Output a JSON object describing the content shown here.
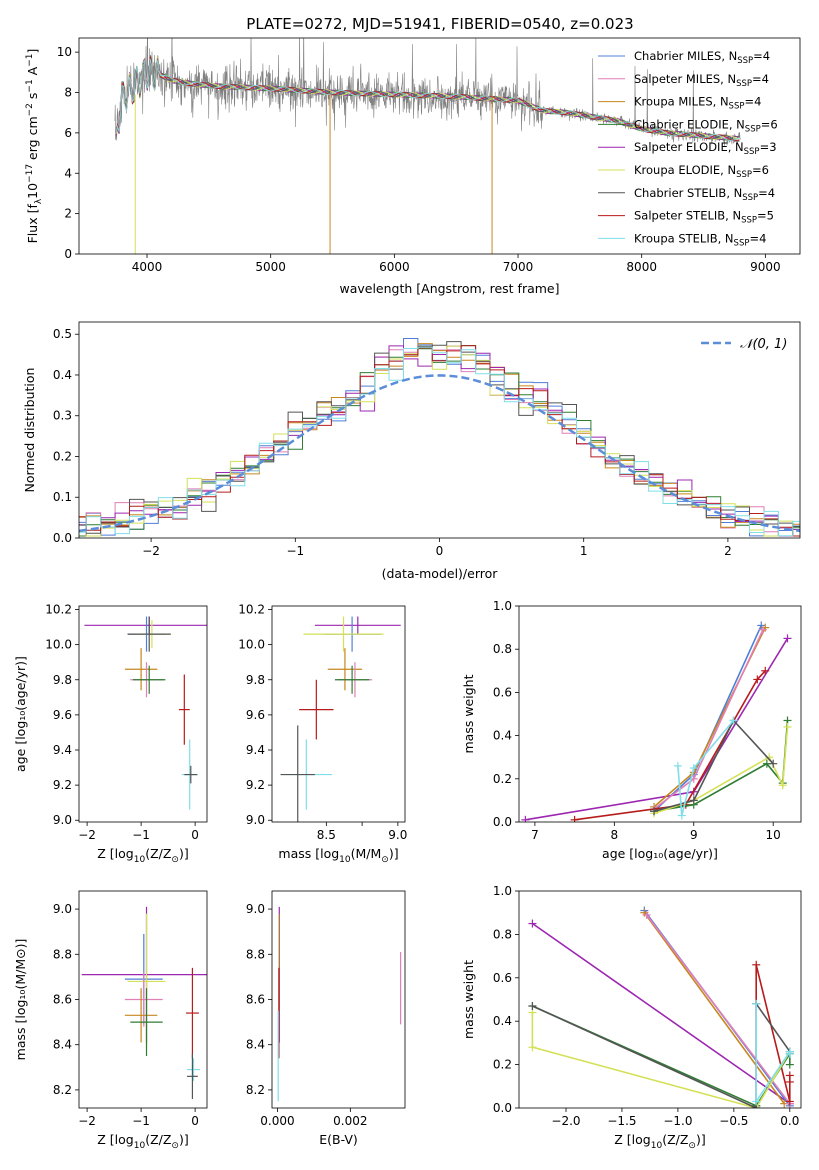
{
  "figure": {
    "title": "PLATE=0272, MJD=51941, FIBERID=0540, z=0.023"
  },
  "series_styles": [
    {
      "name": "Chabrier MILES",
      "n_ssp": "4",
      "color": "#4f7fd6"
    },
    {
      "name": "Salpeter MILES",
      "n_ssp": "4",
      "color": "#e07fb8"
    },
    {
      "name": "Kroupa MILES",
      "n_ssp": "4",
      "color": "#c8861e"
    },
    {
      "name": "Chabrier ELODIE",
      "n_ssp": "6",
      "color": "#2e7d32"
    },
    {
      "name": "Salpeter ELODIE",
      "n_ssp": "3",
      "color": "#9c27b0"
    },
    {
      "name": "Kroupa ELODIE",
      "n_ssp": "6",
      "color": "#d4e157"
    },
    {
      "name": "Chabrier STELIB",
      "n_ssp": "4",
      "color": "#555555"
    },
    {
      "name": "Salpeter STELIB",
      "n_ssp": "5",
      "color": "#b71c1c"
    },
    {
      "name": "Kroupa STELIB",
      "n_ssp": "4",
      "color": "#80deea"
    }
  ],
  "chart_data": [
    {
      "id": "spectrum",
      "type": "line",
      "xlabel": "wavelength [Angstrom, rest frame]",
      "ylabel_parts": [
        "Flux [f",
        "λ",
        "10",
        "−17",
        " erg cm",
        "−2",
        " s",
        "−1",
        " A",
        "−1",
        "]"
      ],
      "xlim": [
        3450,
        9280
      ],
      "ylim": [
        0,
        10.7
      ],
      "xticks": [
        4000,
        5000,
        6000,
        7000,
        8000,
        9000
      ],
      "yticks": [
        0,
        2,
        4,
        6,
        8,
        10
      ],
      "legend": "upper-right",
      "data_color": "#808080",
      "continuum": {
        "x": [
          3750,
          3800,
          3900,
          4000,
          4100,
          4200,
          4400,
          4600,
          5000,
          5500,
          6000,
          6500,
          7000,
          7200,
          7400,
          7600,
          7800,
          8000,
          8200,
          8400,
          8600,
          8800
        ],
        "y": [
          6.0,
          7.8,
          8.3,
          9.0,
          8.9,
          8.6,
          8.4,
          8.3,
          8.2,
          8.0,
          7.9,
          7.8,
          7.6,
          7.1,
          7.0,
          6.8,
          6.6,
          6.2,
          6.0,
          5.9,
          5.8,
          5.7
        ]
      },
      "data_end_x": 8800
    },
    {
      "id": "residuals",
      "type": "histogram",
      "xlabel": "(data-model)/error",
      "ylabel": "Normed distribution",
      "xlim": [
        -2.5,
        2.5
      ],
      "ylim": [
        0,
        0.53
      ],
      "xticks": [
        -2,
        -1,
        0,
        1,
        2
      ],
      "yticks": [
        0.0,
        0.1,
        0.2,
        0.3,
        0.4,
        0.5
      ],
      "legend_label": "𝒩(0, 1)",
      "bin_width": 0.1,
      "gaussian_color": "#5b8dd9"
    },
    {
      "id": "age-vs-Z",
      "type": "errorbar",
      "xlabel_main": "Z [log",
      "xlabel_sub": "10",
      "xlabel_tail": "(Z/Z",
      "xlabel_sym": "⊙",
      "xlabel_end": ")]",
      "ylabel": "age  [log₁₀(age/yr)]",
      "xlim": [
        -2.15,
        0.22
      ],
      "ylim": [
        8.99,
        10.22
      ],
      "xticks": [
        -2,
        -1,
        0
      ],
      "yticks": [
        9.0,
        9.2,
        9.4,
        9.6,
        9.8,
        10.0,
        10.2
      ],
      "points": [
        {
          "s": 4,
          "x": -0.85,
          "xe": 1.2,
          "y": 10.11,
          "ye": 0.05
        },
        {
          "s": 0,
          "x": -0.9,
          "xe": 0.35,
          "y": 10.06,
          "ye": 0.1
        },
        {
          "s": 5,
          "x": -0.8,
          "xe": 0.35,
          "y": 10.06,
          "ye": 0.08
        },
        {
          "s": 6,
          "x": -0.85,
          "xe": 0.4,
          "y": 10.06,
          "ye": 0.1
        },
        {
          "s": 2,
          "x": -1.0,
          "xe": 0.3,
          "y": 9.86,
          "ye": 0.12
        },
        {
          "s": 1,
          "x": -0.9,
          "xe": 0.3,
          "y": 9.8,
          "ye": 0.1
        },
        {
          "s": 3,
          "x": -0.85,
          "xe": 0.3,
          "y": 9.8,
          "ye": 0.08
        },
        {
          "s": 7,
          "x": -0.2,
          "xe": 0.1,
          "y": 9.63,
          "ye": 0.2
        },
        {
          "s": 8,
          "x": -0.1,
          "xe": 0.15,
          "y": 9.26,
          "ye": 0.2
        },
        {
          "s": 6,
          "x": -0.08,
          "xe": 0.12,
          "y": 9.26,
          "ye": 0.05
        }
      ]
    },
    {
      "id": "age-vs-mass",
      "type": "errorbar",
      "xlabel_main": "mass [log",
      "xlabel_sub": "10",
      "xlabel_tail": "(M/M",
      "xlabel_sym": "⊙",
      "xlabel_end": ")]",
      "ylabel": "",
      "xlim": [
        8.12,
        9.05
      ],
      "ylim": [
        8.99,
        10.22
      ],
      "xticks": [
        8.5,
        8.75,
        9.0
      ],
      "xticklabels": [
        "8.5",
        "",
        "9.0"
      ],
      "yticks": [
        9.0,
        9.2,
        9.4,
        9.6,
        9.8,
        10.0,
        10.2
      ],
      "points": [
        {
          "s": 4,
          "x": 8.72,
          "xe": 0.3,
          "y": 10.11,
          "ye": 0.05
        },
        {
          "s": 0,
          "x": 8.68,
          "xe": 0.2,
          "y": 10.06,
          "ye": 0.1
        },
        {
          "s": 5,
          "x": 8.62,
          "xe": 0.28,
          "y": 10.06,
          "ye": 0.1
        },
        {
          "s": 2,
          "x": 8.63,
          "xe": 0.12,
          "y": 9.86,
          "ye": 0.12
        },
        {
          "s": 1,
          "x": 8.7,
          "xe": 0.12,
          "y": 9.8,
          "ye": 0.1
        },
        {
          "s": 3,
          "x": 8.68,
          "xe": 0.12,
          "y": 9.8,
          "ye": 0.08
        },
        {
          "s": 7,
          "x": 8.43,
          "xe": 0.12,
          "y": 9.63,
          "ye": 0.17
        },
        {
          "s": 8,
          "x": 8.36,
          "xe": 0.18,
          "y": 9.26,
          "ye": 0.2
        },
        {
          "s": 6,
          "x": 8.3,
          "xe": 0.12,
          "y": 9.26,
          "ye": 0.28
        }
      ]
    },
    {
      "id": "weight-vs-age",
      "type": "line",
      "xlabel": "age  [log₁₀(age/yr)]",
      "ylabel": "mass weight",
      "xlim": [
        6.8,
        10.35
      ],
      "ylim": [
        0,
        1.0
      ],
      "xticks": [
        7,
        8,
        9,
        10
      ],
      "yticks": [
        0.0,
        0.2,
        0.4,
        0.6,
        0.8,
        1.0
      ],
      "series": [
        {
          "s": 4,
          "x": [
            6.88,
            9.0,
            10.18
          ],
          "y": [
            0.01,
            0.14,
            0.85
          ]
        },
        {
          "s": 0,
          "x": [
            8.5,
            9.0,
            9.85
          ],
          "y": [
            0.05,
            0.22,
            0.91
          ]
        },
        {
          "s": 2,
          "x": [
            8.5,
            9.0,
            9.9
          ],
          "y": [
            0.07,
            0.23,
            0.9
          ]
        },
        {
          "s": 1,
          "x": [
            8.5,
            9.0,
            9.87
          ],
          "y": [
            0.06,
            0.2,
            0.89
          ]
        },
        {
          "s": 7,
          "x": [
            7.5,
            8.9,
            9.8,
            9.9
          ],
          "y": [
            0.01,
            0.08,
            0.66,
            0.7
          ]
        },
        {
          "s": 3,
          "x": [
            8.5,
            9.0,
            9.92,
            10.12,
            10.18
          ],
          "y": [
            0.05,
            0.08,
            0.27,
            0.18,
            0.47
          ]
        },
        {
          "s": 5,
          "x": [
            8.5,
            9.0,
            9.95,
            10.12,
            10.18
          ],
          "y": [
            0.04,
            0.1,
            0.3,
            0.17,
            0.44
          ]
        },
        {
          "s": 6,
          "x": [
            8.5,
            9.0,
            9.5,
            10.0
          ],
          "y": [
            0.05,
            0.1,
            0.47,
            0.27
          ]
        },
        {
          "s": 8,
          "x": [
            8.8,
            8.85,
            9.0,
            9.5
          ],
          "y": [
            0.26,
            0.03,
            0.25,
            0.47
          ]
        }
      ]
    },
    {
      "id": "mass-vs-Z",
      "type": "errorbar",
      "xlabel_main": "Z [log",
      "xlabel_sub": "10",
      "xlabel_tail": "(Z/Z",
      "xlabel_sym": "⊙",
      "xlabel_end": ")]",
      "ylabel": "mass [log₁₀(M/M⊙)]",
      "xlim": [
        -2.15,
        0.22
      ],
      "ylim": [
        8.12,
        9.08
      ],
      "xticks": [
        -2,
        -1,
        0
      ],
      "yticks": [
        8.2,
        8.4,
        8.6,
        8.8,
        9.0
      ],
      "points": [
        {
          "s": 4,
          "x": -0.9,
          "xe": 1.2,
          "y": 8.71,
          "ye": 0.3
        },
        {
          "s": 0,
          "x": -0.95,
          "xe": 0.35,
          "y": 8.69,
          "ye": 0.2
        },
        {
          "s": 5,
          "x": -0.9,
          "xe": 0.35,
          "y": 8.68,
          "ye": 0.3
        },
        {
          "s": 1,
          "x": -0.95,
          "xe": 0.35,
          "y": 8.6,
          "ye": 0.12
        },
        {
          "s": 2,
          "x": -1.0,
          "xe": 0.3,
          "y": 8.53,
          "ye": 0.12
        },
        {
          "s": 3,
          "x": -0.9,
          "xe": 0.3,
          "y": 8.5,
          "ye": 0.15
        },
        {
          "s": 7,
          "x": -0.05,
          "xe": 0.12,
          "y": 8.54,
          "ye": 0.2
        },
        {
          "s": 8,
          "x": -0.03,
          "xe": 0.12,
          "y": 8.29,
          "ye": 0.05
        },
        {
          "s": 6,
          "x": -0.05,
          "xe": 0.1,
          "y": 8.26,
          "ye": 0.1
        }
      ]
    },
    {
      "id": "mass-vs-ebv",
      "type": "errorbar",
      "xlabel": "E(B-V)",
      "ylabel": "",
      "xlim": [
        -0.00015,
        0.0035
      ],
      "ylim": [
        8.12,
        9.08
      ],
      "xticks": [
        0.0,
        0.002
      ],
      "xticklabels": [
        "0.000",
        "0.002"
      ],
      "yticks": [
        8.2,
        8.4,
        8.6,
        8.8,
        9.0
      ],
      "points": [
        {
          "s": 4,
          "x": 5e-05,
          "xe": 0,
          "y": 8.71,
          "ye": 0.3
        },
        {
          "s": 5,
          "x": 3e-05,
          "xe": 0,
          "y": 8.68,
          "ye": 0.3
        },
        {
          "s": 7,
          "x": 4e-05,
          "xe": 0,
          "y": 8.54,
          "ye": 0.2
        },
        {
          "s": 8,
          "x": 2e-05,
          "xe": 0,
          "y": 8.35,
          "ye": 0.2
        },
        {
          "s": 1,
          "x": 0.00338,
          "xe": 0,
          "y": 8.65,
          "ye": 0.16
        }
      ]
    },
    {
      "id": "weight-vs-Z",
      "type": "line",
      "xlabel_main": "Z [log",
      "xlabel_sub": "10",
      "xlabel_tail": "(Z/Z",
      "xlabel_sym": "⊙",
      "xlabel_end": ")]",
      "ylabel": "mass weight",
      "xlim": [
        -2.42,
        0.1
      ],
      "ylim": [
        0,
        1.0
      ],
      "xticks": [
        -2.0,
        -1.5,
        -1.0,
        -0.5,
        0.0
      ],
      "xticklabels": [
        "−2.0",
        "−1.5",
        "−1.0",
        "−0.5",
        "0.0"
      ],
      "yticks": [
        0.0,
        0.2,
        0.4,
        0.6,
        0.8,
        1.0
      ],
      "series": [
        {
          "s": 4,
          "x": [
            -2.3,
            0.0
          ],
          "y": [
            0.85,
            0.02
          ]
        },
        {
          "s": 0,
          "x": [
            -1.3,
            0.0
          ],
          "y": [
            0.91,
            0.01
          ]
        },
        {
          "s": 2,
          "x": [
            -1.3,
            -0.05
          ],
          "y": [
            0.9,
            0.02
          ]
        },
        {
          "s": 1,
          "x": [
            -1.28,
            0.0
          ],
          "y": [
            0.89,
            0.02
          ]
        },
        {
          "s": 7,
          "x": [
            -0.3,
            -0.3,
            0.0,
            0.0,
            0.0
          ],
          "y": [
            0.01,
            0.66,
            0.03,
            0.15,
            0.12
          ]
        },
        {
          "s": 3,
          "x": [
            -2.3,
            -0.3,
            0.0,
            0.0
          ],
          "y": [
            0.47,
            0.01,
            0.25,
            0.2
          ]
        },
        {
          "s": 5,
          "x": [
            -2.3,
            -2.3,
            -0.3,
            0.0
          ],
          "y": [
            0.44,
            0.28,
            0.0,
            0.26
          ]
        },
        {
          "s": 6,
          "x": [
            -2.3,
            -0.3,
            -0.3,
            0.0
          ],
          "y": [
            0.47,
            0.0,
            0.48,
            0.26
          ]
        },
        {
          "s": 8,
          "x": [
            -0.3,
            -0.3,
            0.0,
            0.0
          ],
          "y": [
            0.48,
            0.03,
            0.26,
            0.25
          ]
        }
      ]
    }
  ]
}
